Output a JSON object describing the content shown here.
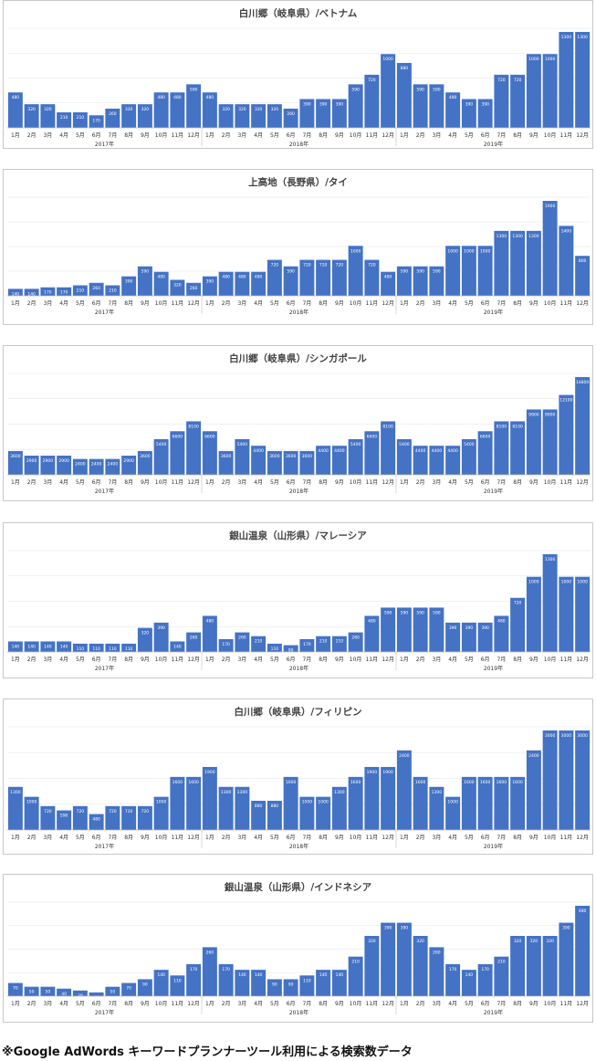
{
  "months": [
    "1月",
    "2月",
    "3月",
    "4月",
    "5月",
    "6月",
    "7月",
    "8月",
    "9月",
    "10月",
    "11月",
    "12月"
  ],
  "years": [
    "2017年",
    "2018年",
    "2019年"
  ],
  "footnote": "※Google AdWords キーワードプランナーツール利用による検索数データ",
  "bar_color": "#4472C4",
  "chart_data": [
    {
      "type": "bar",
      "title": "白川郷（岐阜県）/ベトナム",
      "values": [
        480,
        320,
        320,
        210,
        210,
        170,
        260,
        320,
        320,
        480,
        480,
        590,
        480,
        320,
        320,
        320,
        320,
        260,
        390,
        390,
        390,
        590,
        720,
        1000,
        880,
        590,
        590,
        480,
        390,
        390,
        720,
        720,
        1000,
        1000,
        1300,
        1300
      ]
    },
    {
      "type": "bar",
      "title": "上高地（長野県）/タイ",
      "values": [
        140,
        140,
        170,
        170,
        210,
        260,
        210,
        390,
        590,
        480,
        320,
        260,
        390,
        480,
        480,
        480,
        720,
        590,
        720,
        720,
        720,
        1000,
        720,
        480,
        590,
        590,
        590,
        1000,
        1000,
        1000,
        1300,
        1300,
        1300,
        1900,
        1400,
        800
      ]
    },
    {
      "type": "bar",
      "title": "白川郷（岐阜県）/シンガポール",
      "values": [
        3600,
        2900,
        2900,
        2900,
        2400,
        2400,
        2400,
        2900,
        3600,
        5400,
        6600,
        8100,
        6600,
        3600,
        5400,
        4400,
        3600,
        3600,
        3600,
        4400,
        4400,
        5400,
        6600,
        8100,
        5400,
        4400,
        4400,
        4400,
        5400,
        6600,
        8100,
        8100,
        9900,
        9900,
        12100,
        14800
      ]
    },
    {
      "type": "bar",
      "title": "銀山温泉（山形県）/マレーシア",
      "values": [
        140,
        140,
        140,
        140,
        110,
        110,
        110,
        110,
        320,
        390,
        140,
        260,
        480,
        170,
        260,
        210,
        110,
        90,
        170,
        210,
        210,
        260,
        480,
        590,
        590,
        590,
        590,
        390,
        390,
        390,
        480,
        720,
        1000,
        1300,
        1000,
        1000
      ]
    },
    {
      "type": "bar",
      "title": "白川郷（岐阜県）/フィリピン",
      "values": [
        1300,
        1000,
        720,
        590,
        720,
        480,
        720,
        720,
        720,
        1000,
        1600,
        1600,
        1900,
        1300,
        1300,
        880,
        880,
        1600,
        1000,
        1000,
        1300,
        1600,
        1900,
        1900,
        2400,
        1600,
        1300,
        1000,
        1600,
        1600,
        1600,
        1600,
        2400,
        3000,
        3000,
        3000
      ]
    },
    {
      "type": "bar",
      "title": "銀山温泉（山形県）/インドネシア",
      "values": [
        70,
        50,
        50,
        40,
        30,
        20,
        50,
        70,
        90,
        140,
        110,
        170,
        260,
        170,
        140,
        140,
        90,
        90,
        110,
        140,
        140,
        210,
        320,
        390,
        390,
        320,
        260,
        170,
        140,
        170,
        210,
        320,
        320,
        320,
        390,
        480
      ]
    }
  ]
}
